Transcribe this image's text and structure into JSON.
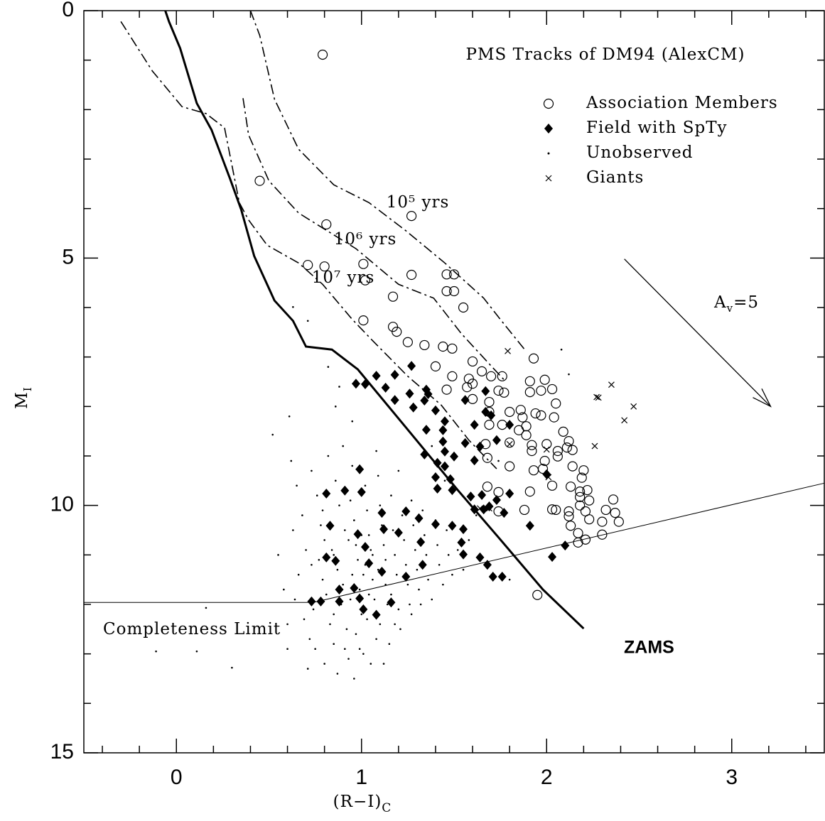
{
  "chart_data": {
    "type": "scatter",
    "title": "PMS Tracks of DM94 (AlexCM)",
    "xlabel": {
      "text": "(R−I)",
      "sub": "C"
    },
    "ylabel": {
      "text": "M",
      "sub": "I"
    },
    "xlim": [
      -0.5,
      3.5
    ],
    "ylim": [
      15,
      0
    ],
    "xticks": [
      0,
      1,
      2,
      3
    ],
    "yticks": [
      0,
      5,
      10,
      15
    ],
    "xminorticks": [
      -0.4,
      -0.2,
      0.2,
      0.4,
      0.6,
      0.8,
      1.2,
      1.4,
      1.6,
      1.8,
      2.2,
      2.4,
      2.6,
      2.8,
      3.2,
      3.4
    ],
    "yminorticks": [
      1,
      2,
      3,
      4,
      6,
      7,
      8,
      9,
      11,
      12,
      13,
      14
    ],
    "legend": "upper right",
    "series": [
      {
        "name": "Association Members",
        "marker": "circle",
        "color": "#000000",
        "x": [
          0.79,
          0.45,
          1.27,
          0.81,
          1.01,
          0.71,
          0.8,
          1.02,
          1.27,
          1.46,
          1.5,
          1.46,
          1.5,
          1.17,
          1.55,
          1.01,
          1.17,
          1.19,
          1.25,
          1.34,
          1.44,
          1.49,
          1.4,
          1.93,
          1.6,
          1.49,
          1.58,
          1.65,
          1.7,
          1.76,
          1.91,
          1.99,
          1.46,
          1.57,
          1.6,
          1.74,
          1.77,
          1.97,
          2.03,
          1.91,
          1.6,
          1.69,
          1.86,
          1.94,
          2.05,
          1.69,
          1.8,
          1.87,
          1.89,
          1.97,
          2.04,
          1.69,
          1.76,
          1.85,
          1.89,
          2.09,
          1.67,
          1.8,
          1.92,
          2.0,
          2.06,
          2.11,
          2.14,
          2.12,
          1.92,
          1.99,
          2.06,
          1.68,
          1.8,
          1.93,
          1.98,
          2.14,
          2.19,
          2.2,
          1.68,
          1.74,
          1.91,
          2.03,
          2.13,
          2.18,
          2.18,
          2.22,
          2.23,
          1.88,
          2.03,
          2.05,
          2.12,
          2.18,
          2.36,
          2.21,
          2.32,
          2.37,
          2.39,
          2.12,
          2.23,
          2.3,
          2.13,
          2.17,
          2.3,
          2.21,
          2.17,
          1.95,
          1.74
        ],
        "y": [
          0.89,
          3.44,
          4.15,
          4.32,
          5.12,
          5.14,
          5.17,
          5.45,
          5.34,
          5.33,
          5.33,
          5.67,
          5.67,
          5.78,
          6.0,
          6.26,
          6.39,
          6.49,
          6.7,
          6.76,
          6.79,
          6.83,
          7.19,
          7.03,
          7.09,
          7.39,
          7.44,
          7.29,
          7.39,
          7.39,
          7.49,
          7.46,
          7.66,
          7.61,
          7.54,
          7.68,
          7.72,
          7.68,
          7.65,
          7.71,
          7.85,
          7.91,
          8.07,
          8.14,
          7.94,
          8.11,
          8.11,
          8.22,
          8.4,
          8.18,
          8.22,
          8.37,
          8.37,
          8.48,
          8.58,
          8.51,
          8.76,
          8.73,
          8.78,
          8.76,
          8.9,
          8.83,
          8.88,
          8.7,
          8.9,
          9.1,
          9.01,
          9.04,
          9.21,
          9.29,
          9.26,
          9.21,
          9.44,
          9.29,
          9.62,
          9.73,
          9.72,
          9.6,
          9.62,
          9.72,
          9.83,
          9.69,
          9.9,
          10.09,
          10.08,
          10.09,
          10.12,
          10.0,
          9.88,
          10.12,
          10.09,
          10.15,
          10.33,
          10.22,
          10.28,
          10.33,
          10.41,
          10.56,
          10.59,
          10.69,
          10.75,
          11.81,
          10.12
        ]
      },
      {
        "name": "Field with SpTy",
        "marker": "diamond",
        "color": "#000000",
        "x": [
          1.08,
          1.02,
          1.18,
          1.27,
          1.35,
          1.36,
          1.26,
          1.34,
          1.18,
          1.13,
          1.28,
          1.4,
          1.45,
          1.35,
          1.44,
          1.56,
          1.61,
          1.67,
          1.67,
          1.7,
          1.8,
          1.44,
          1.45,
          1.41,
          1.45,
          1.56,
          1.5,
          1.61,
          1.64,
          1.73,
          1.34,
          1.4,
          1.48,
          1.41,
          1.49,
          1.59,
          1.61,
          1.65,
          1.66,
          1.69,
          1.73,
          1.8,
          1.77,
          1.91,
          2.0,
          1.55,
          1.54,
          1.4,
          1.31,
          1.24,
          1.11,
          1.0,
          0.99,
          0.97,
          1.32,
          1.55,
          1.64,
          1.68,
          1.71,
          1.76,
          1.2,
          1.12,
          1.33,
          1.24,
          1.16,
          1.08,
          1.01,
          0.99,
          0.96,
          0.88,
          0.88,
          0.73,
          0.78,
          0.81,
          0.83,
          0.86,
          0.98,
          1.02,
          1.04,
          1.11,
          0.91,
          0.81,
          2.03,
          2.1,
          1.49
        ],
        "y": [
          7.38,
          7.55,
          7.36,
          7.18,
          7.66,
          7.75,
          7.74,
          7.88,
          7.87,
          7.62,
          8.02,
          8.08,
          8.3,
          8.47,
          8.48,
          7.87,
          8.37,
          8.11,
          7.69,
          8.18,
          8.37,
          8.71,
          8.91,
          9.14,
          9.21,
          8.74,
          9.01,
          9.09,
          8.81,
          8.68,
          8.97,
          9.43,
          9.47,
          9.66,
          9.69,
          9.82,
          10.08,
          9.79,
          10.08,
          10.02,
          9.89,
          9.76,
          10.15,
          10.41,
          9.37,
          10.48,
          10.75,
          10.38,
          10.26,
          10.12,
          10.15,
          9.73,
          9.27,
          7.54,
          10.74,
          10.99,
          11.05,
          11.2,
          11.44,
          11.44,
          10.55,
          10.48,
          11.2,
          11.44,
          11.96,
          12.21,
          12.1,
          11.88,
          11.67,
          11.7,
          11.94,
          11.94,
          11.94,
          11.05,
          10.41,
          11.12,
          10.58,
          10.84,
          11.17,
          11.34,
          9.7,
          9.76,
          11.04,
          10.81,
          10.41
        ]
      },
      {
        "name": "Unobserved",
        "marker": "dot",
        "color": "#000000",
        "x": [
          0.62,
          0.65,
          0.68,
          0.7,
          0.66,
          0.64,
          0.69,
          0.72,
          0.75,
          0.73,
          0.76,
          0.78,
          0.8,
          0.77,
          0.79,
          0.81,
          0.74,
          0.83,
          0.85,
          0.82,
          0.86,
          0.88,
          0.84,
          0.87,
          0.9,
          0.89,
          0.92,
          0.91,
          0.93,
          0.95,
          0.94,
          0.96,
          0.97,
          0.98,
          0.95,
          0.99,
          1.0,
          0.97,
          1.01,
          1.02,
          1.03,
          1.04,
          1.05,
          1.02,
          1.06,
          1.07,
          1.03,
          1.08,
          1.05,
          1.09,
          1.1,
          1.11,
          1.12,
          1.09,
          1.13,
          1.14,
          1.1,
          1.15,
          1.16,
          1.17,
          1.18,
          1.19,
          1.16,
          1.2,
          1.21,
          1.22,
          1.23,
          1.24,
          1.25,
          1.26,
          1.27,
          1.28,
          1.29,
          1.3,
          1.31,
          1.33,
          1.34,
          1.35,
          1.36,
          1.38,
          1.4,
          1.41,
          1.42,
          1.44,
          1.46,
          1.47,
          1.49,
          1.52,
          1.55,
          1.58,
          0.58,
          0.6,
          0.55,
          0.63,
          0.6,
          0.71,
          0.87,
          1.12,
          0.96,
          0.8,
          0.73,
          0.79,
          0.85,
          0.91,
          0.94,
          1.0,
          1.06,
          1.13,
          0.88,
          1.01,
          0.93,
          1.04,
          0.85,
          0.99,
          1.18,
          1.27,
          1.32,
          1.2,
          1.08,
          0.9,
          -0.11,
          0.11,
          0.3,
          0.16,
          0.52,
          0.61,
          0.63,
          0.71,
          2.08,
          2.12,
          0.82,
          0.88,
          0.86,
          0.95,
          1.38,
          1.45,
          1.62,
          1.68,
          1.8,
          1.74
        ],
        "y": [
          9.1,
          9.6,
          10.2,
          10.9,
          11.4,
          11.9,
          12.3,
          12.7,
          12.9,
          9.3,
          9.8,
          10.4,
          10.7,
          11.1,
          11.5,
          11.8,
          12.1,
          12.4,
          12.8,
          9.0,
          9.5,
          10.0,
          10.9,
          11.3,
          11.6,
          12.0,
          12.5,
          12.9,
          13.1,
          9.2,
          9.9,
          10.3,
          10.8,
          11.1,
          11.4,
          11.7,
          12.2,
          12.6,
          13.0,
          9.6,
          10.1,
          10.6,
          10.9,
          11.2,
          11.5,
          11.9,
          12.3,
          12.7,
          13.2,
          9.4,
          10.0,
          10.4,
          10.8,
          11.3,
          11.6,
          12.0,
          12.4,
          12.8,
          9.8,
          10.5,
          11.0,
          11.4,
          11.8,
          12.1,
          12.5,
          10.2,
          10.7,
          11.2,
          11.6,
          12.0,
          9.9,
          10.4,
          10.9,
          11.3,
          11.7,
          10.1,
          10.6,
          11.0,
          11.5,
          11.9,
          10.3,
          10.8,
          11.2,
          11.6,
          10.5,
          11.0,
          11.4,
          10.9,
          11.3,
          10.7,
          11.7,
          12.4,
          11.0,
          10.5,
          12.9,
          13.3,
          13.4,
          13.2,
          13.5,
          13.2,
          11.2,
          10.1,
          11.0,
          10.5,
          11.9,
          10.6,
          11.0,
          11.1,
          11.9,
          11.4,
          10.7,
          11.8,
          12.2,
          12.9,
          12.4,
          12.2,
          12.0,
          9.3,
          8.9,
          8.8,
          12.95,
          12.95,
          13.28,
          12.07,
          8.57,
          8.2,
          5.99,
          6.27,
          6.85,
          7.35,
          7.2,
          7.6,
          8.0,
          8.3,
          8.8,
          9.5,
          10.2,
          11.2,
          11.5,
          9.1
        ]
      },
      {
        "name": "Giants",
        "marker": "cross",
        "color": "#000000",
        "x": [
          1.79,
          1.8,
          2.0,
          2.01,
          2.27,
          2.28,
          2.35,
          2.47,
          2.42,
          2.26,
          1.64,
          1.69
        ],
        "y": [
          6.88,
          8.76,
          8.87,
          9.43,
          7.81,
          7.82,
          7.56,
          8.0,
          8.28,
          8.8,
          10.06,
          10.06
        ]
      }
    ],
    "lines": [
      {
        "label": "ZAMS",
        "style": "thick",
        "x": [
          -0.06,
          -0.04,
          0.02,
          0.11,
          0.19,
          0.29,
          0.35,
          0.42,
          0.53,
          0.63,
          0.7,
          0.84,
          0.98,
          1.25,
          1.52,
          1.75,
          1.98,
          2.2
        ],
        "y": [
          0,
          0.22,
          0.76,
          1.87,
          2.41,
          3.4,
          4.02,
          4.96,
          5.86,
          6.27,
          6.79,
          6.85,
          7.25,
          8.47,
          9.69,
          10.69,
          11.7,
          12.49
        ]
      },
      {
        "label": "10⁵ yrs",
        "style": "dashdot",
        "x": [
          0.4,
          0.45,
          0.53,
          0.66,
          0.85,
          1.04,
          1.24,
          1.45,
          1.66,
          1.75,
          1.89
        ],
        "y": [
          0,
          0.5,
          1.79,
          2.8,
          3.52,
          3.88,
          4.45,
          5.1,
          5.81,
          6.24,
          6.89
        ]
      },
      {
        "label": "10⁶ yrs",
        "style": "dashdot",
        "x": [
          0.36,
          0.39,
          0.5,
          0.66,
          0.97,
          1.2,
          1.39,
          1.54,
          1.7,
          1.77
        ],
        "y": [
          1.77,
          2.51,
          3.44,
          4.09,
          4.81,
          5.53,
          5.81,
          6.53,
          7.18,
          7.46
        ]
      },
      {
        "label": "10⁷ yrs",
        "style": "dashdot",
        "x": [
          -0.3,
          -0.13,
          0.03,
          0.16,
          0.26,
          0.34,
          0.39,
          0.49,
          0.66,
          0.79,
          0.95,
          1.06,
          1.25,
          1.43,
          1.58,
          1.73
        ],
        "y": [
          0.22,
          1.22,
          1.94,
          2.08,
          2.37,
          3.88,
          4.23,
          4.74,
          5.1,
          5.53,
          6.24,
          6.67,
          7.39,
          7.97,
          8.68,
          9.26
        ]
      },
      {
        "label": "Completeness Limit",
        "style": "thin",
        "x": [
          -0.5,
          0.74,
          3.5
        ],
        "y": [
          11.96,
          11.96,
          9.55
        ]
      }
    ],
    "arrow": {
      "label": "A",
      "sub": "v",
      "text": "=5",
      "x": [
        2.42,
        3.21
      ],
      "y": [
        5.02,
        8.0
      ]
    }
  }
}
